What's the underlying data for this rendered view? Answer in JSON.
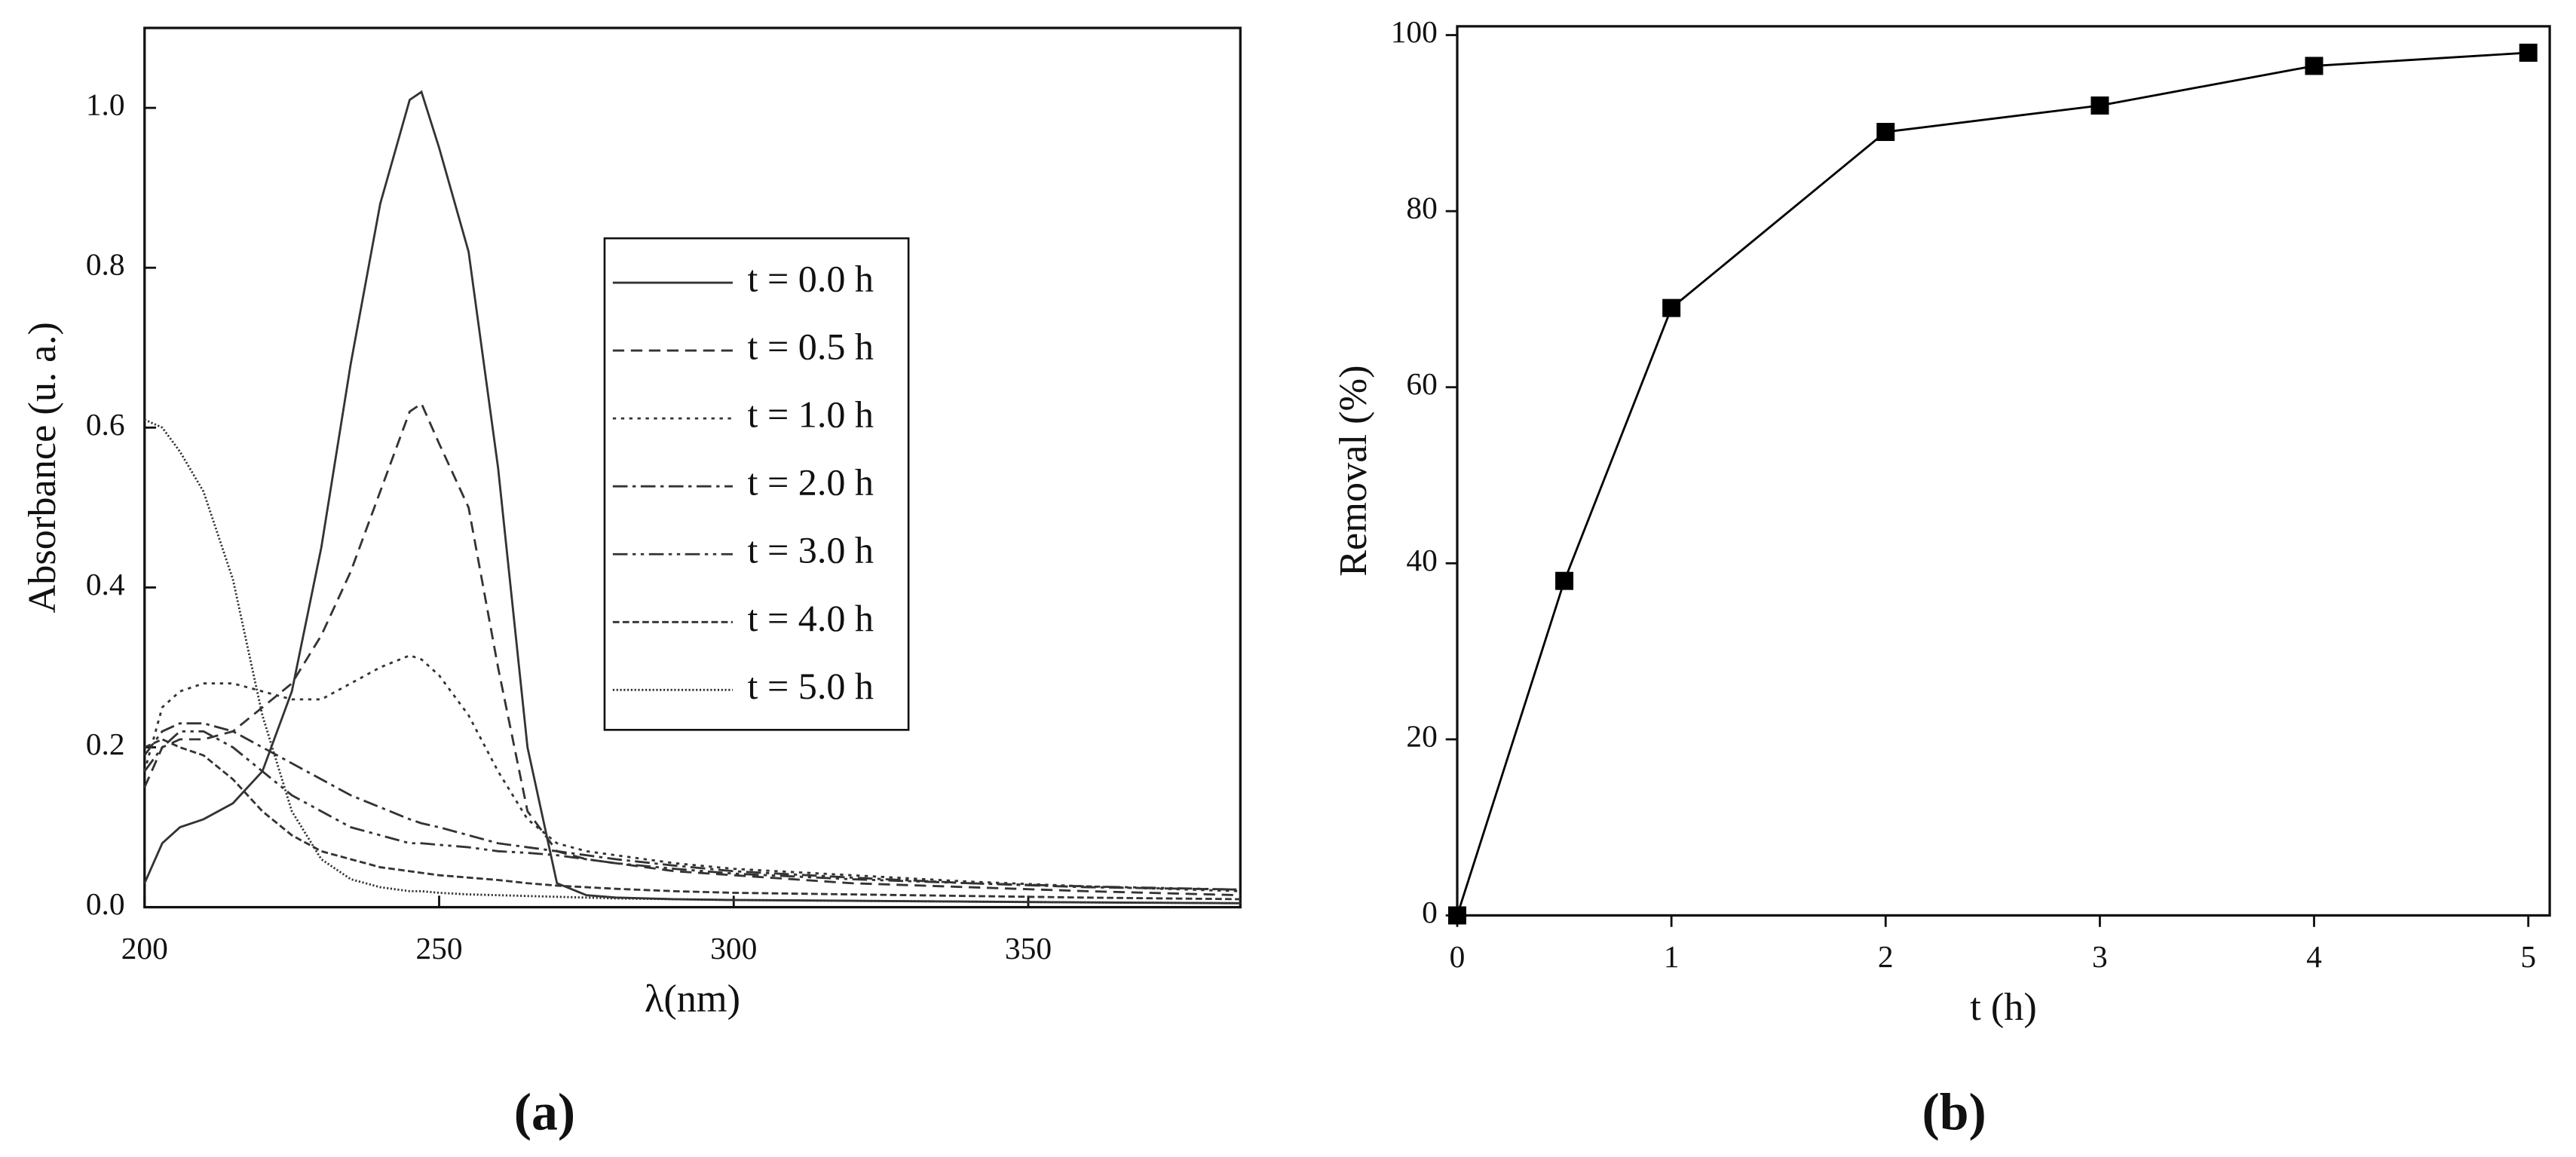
{
  "chart_data": [
    {
      "type": "line",
      "x_label": "λ(nm)",
      "y_label": "Absorbance (u. a.)",
      "panel_label": "(a)",
      "x": [
        200,
        203,
        206,
        210,
        215,
        220,
        225,
        230,
        235,
        240,
        245,
        247,
        250,
        255,
        260,
        265,
        270,
        275,
        280,
        290,
        300,
        320,
        340,
        360,
        386
      ],
      "series": [
        {
          "name": "t = 0.0 h",
          "color": "#333333",
          "dash": "solid",
          "values": [
            0.03,
            0.08,
            0.1,
            0.11,
            0.13,
            0.17,
            0.27,
            0.45,
            0.68,
            0.88,
            1.01,
            1.02,
            0.95,
            0.82,
            0.55,
            0.2,
            0.03,
            0.015,
            0.012,
            0.01,
            0.009,
            0.008,
            0.007,
            0.006,
            0.005
          ]
        },
        {
          "name": "t = 0.5 h",
          "color": "#333333",
          "dash": "dashed",
          "values": [
            0.15,
            0.2,
            0.21,
            0.21,
            0.22,
            0.25,
            0.28,
            0.34,
            0.42,
            0.52,
            0.62,
            0.63,
            0.58,
            0.5,
            0.3,
            0.12,
            0.07,
            0.06,
            0.055,
            0.045,
            0.04,
            0.03,
            0.025,
            0.02,
            0.015
          ]
        },
        {
          "name": "t = 1.0 h",
          "color": "#333333",
          "dash": "dotted",
          "values": [
            0.17,
            0.25,
            0.27,
            0.28,
            0.28,
            0.27,
            0.26,
            0.26,
            0.28,
            0.3,
            0.315,
            0.31,
            0.29,
            0.24,
            0.17,
            0.11,
            0.08,
            0.07,
            0.065,
            0.055,
            0.048,
            0.04,
            0.032,
            0.026,
            0.02
          ]
        },
        {
          "name": "t = 2.0 h",
          "color": "#333333",
          "dash": "dashdot",
          "values": [
            0.19,
            0.22,
            0.23,
            0.23,
            0.22,
            0.2,
            0.18,
            0.16,
            0.14,
            0.125,
            0.11,
            0.105,
            0.1,
            0.09,
            0.08,
            0.075,
            0.07,
            0.065,
            0.06,
            0.052,
            0.045,
            0.037,
            0.03,
            0.025,
            0.022
          ]
        },
        {
          "name": "t = 3.0 h",
          "color": "#333333",
          "dash": "dashdotdot",
          "values": [
            0.17,
            0.2,
            0.22,
            0.22,
            0.2,
            0.17,
            0.14,
            0.12,
            0.1,
            0.09,
            0.08,
            0.08,
            0.078,
            0.075,
            0.07,
            0.068,
            0.065,
            0.06,
            0.055,
            0.048,
            0.042,
            0.035,
            0.03,
            0.026,
            0.022
          ]
        },
        {
          "name": "t = 4.0 h",
          "color": "#333333",
          "dash": "shortdash",
          "values": [
            0.2,
            0.21,
            0.2,
            0.19,
            0.16,
            0.12,
            0.09,
            0.07,
            0.06,
            0.05,
            0.045,
            0.043,
            0.04,
            0.037,
            0.034,
            0.03,
            0.027,
            0.025,
            0.023,
            0.02,
            0.018,
            0.016,
            0.014,
            0.012,
            0.01
          ]
        },
        {
          "name": "t = 5.0 h",
          "color": "#333333",
          "dash": "finedot",
          "values": [
            0.61,
            0.6,
            0.57,
            0.52,
            0.41,
            0.24,
            0.12,
            0.06,
            0.035,
            0.025,
            0.02,
            0.02,
            0.018,
            0.016,
            0.015,
            0.014,
            0.013,
            0.012,
            0.011,
            0.01,
            0.009,
            0.008,
            0.007,
            0.006,
            0.005
          ]
        }
      ],
      "xlim": [
        200,
        386
      ],
      "xticks": [
        200,
        250,
        300,
        350
      ],
      "ylim": [
        0,
        1.1
      ],
      "yticks": [
        {
          "value": 0,
          "label": "0.0"
        },
        0.2,
        0.4,
        0.6,
        0.8,
        {
          "value": 1,
          "label": "1.0"
        }
      ],
      "legend": "upper right",
      "grid": false
    },
    {
      "type": "line",
      "x_label": "t (h)",
      "y_label": "Removal (%)",
      "panel_label": "(b)",
      "x": [
        0,
        0.5,
        1,
        2,
        3,
        4,
        5
      ],
      "series": [
        {
          "name": "Removal",
          "color": "#000000",
          "dash": "solid",
          "marker": "square",
          "values": [
            0,
            38,
            69,
            89,
            92,
            96.5,
            98
          ]
        }
      ],
      "xlim": [
        0,
        5.1
      ],
      "xticks": [
        0,
        1,
        2,
        3,
        4,
        5
      ],
      "ylim": [
        0,
        101
      ],
      "yticks": [
        0,
        20,
        40,
        60,
        80,
        100
      ],
      "legend": "none",
      "grid": false
    }
  ]
}
